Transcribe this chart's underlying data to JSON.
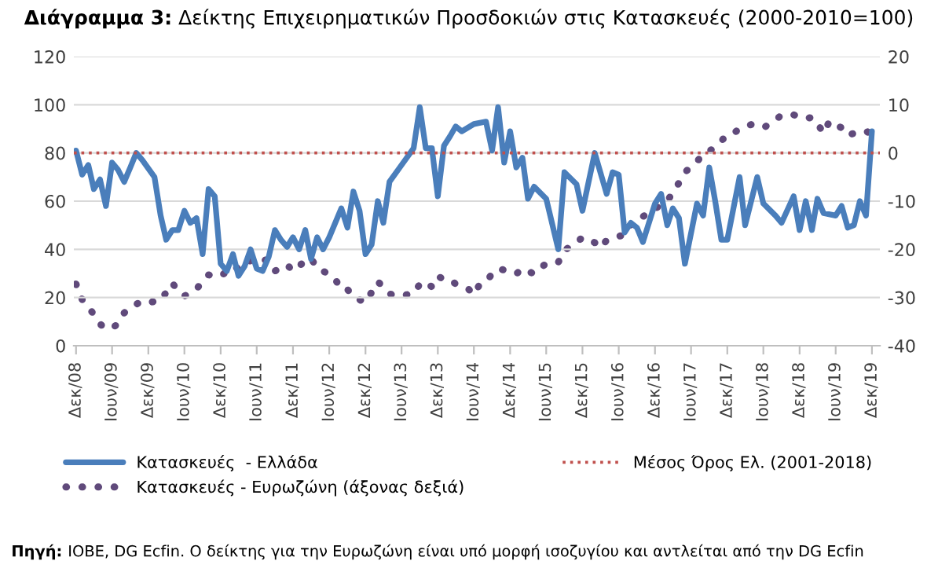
{
  "chart_data": {
    "type": "line",
    "title": "Διάγραμμα 3: Δείκτης Επιχειρηματικών Προσδοκιών στις Κατασκευές (2000-2010=100)",
    "series": [
      {
        "name": "Κατασκευές  - Ελλάδα",
        "color": "#4a7ebb",
        "line_style": "solid",
        "x": [
          "2008-12",
          "2009-01",
          "2009-02",
          "2009-03",
          "2009-04",
          "2009-05",
          "2009-06",
          "2009-07",
          "2009-08",
          "2009-09",
          "2009-10",
          "2009-11",
          "2010-01",
          "2010-02",
          "2010-03",
          "2010-04",
          "2010-05",
          "2010-06",
          "2010-07",
          "2010-08",
          "2010-09",
          "2010-10",
          "2010-11",
          "2010-12",
          "2011-01",
          "2011-02",
          "2011-03",
          "2011-04",
          "2011-05",
          "2011-06",
          "2011-07",
          "2011-08",
          "2011-09",
          "2011-10",
          "2011-11",
          "2011-12",
          "2012-01",
          "2012-02",
          "2012-03",
          "2012-04",
          "2012-05",
          "2012-06",
          "2012-08",
          "2012-09",
          "2012-10",
          "2012-11",
          "2012-12",
          "2013-01",
          "2013-02",
          "2013-03",
          "2013-04",
          "2013-06",
          "2013-08",
          "2013-09",
          "2013-10",
          "2013-11",
          "2013-12",
          "2014-01",
          "2014-02",
          "2014-03",
          "2014-04",
          "2014-06",
          "2014-08",
          "2014-09",
          "2014-10",
          "2014-11",
          "2014-12",
          "2015-01",
          "2015-02",
          "2015-03",
          "2015-04",
          "2015-06",
          "2015-08",
          "2015-09",
          "2015-11",
          "2015-12",
          "2016-02",
          "2016-04",
          "2016-05",
          "2016-06",
          "2016-07",
          "2016-08",
          "2016-09",
          "2016-10",
          "2016-12",
          "2017-01",
          "2017-02",
          "2017-03",
          "2017-04",
          "2017-05",
          "2017-07",
          "2017-08",
          "2017-09",
          "2017-10",
          "2017-11",
          "2017-12",
          "2018-02",
          "2018-03",
          "2018-05",
          "2018-06",
          "2018-08",
          "2018-09",
          "2018-11",
          "2018-12",
          "2019-01",
          "2019-02",
          "2019-03",
          "2019-04",
          "2019-06",
          "2019-07",
          "2019-08",
          "2019-09",
          "2019-10",
          "2019-11",
          "2019-12"
        ],
        "values": [
          81,
          71,
          75,
          65,
          69,
          58,
          76,
          73,
          68,
          74,
          80,
          77,
          70,
          54,
          44,
          48,
          48,
          56,
          51,
          53,
          38,
          65,
          62,
          34,
          31,
          38,
          29,
          33,
          40,
          32,
          31,
          37,
          48,
          44,
          41,
          45,
          40,
          48,
          36,
          45,
          40,
          45,
          57,
          49,
          64,
          56,
          38,
          42,
          60,
          51,
          68,
          75,
          82,
          99,
          82,
          82,
          62,
          83,
          87,
          91,
          89,
          92,
          93,
          81,
          99,
          76,
          89,
          74,
          78,
          61,
          66,
          61,
          40,
          72,
          67,
          56,
          80,
          63,
          72,
          71,
          47,
          51,
          49,
          43,
          59,
          63,
          50,
          57,
          53,
          34,
          59,
          54,
          74,
          60,
          44,
          44,
          70,
          50,
          70,
          59,
          54,
          51,
          62,
          48,
          60,
          48,
          61,
          55,
          54,
          58,
          49,
          50,
          60,
          54,
          89
        ]
      },
      {
        "name": "Κατασκευές - Ευρωζώνη (άξονας δεξιά)",
        "color": "#604a7b",
        "line_style": "dotted",
        "axis": "y2",
        "x": [
          "2008-12",
          "2009-01",
          "2009-02",
          "2009-03",
          "2009-04",
          "2009-05",
          "2009-06",
          "2009-07",
          "2009-08",
          "2009-09",
          "2009-11",
          "2009-12",
          "2010-02",
          "2010-03",
          "2010-04",
          "2010-05",
          "2010-06",
          "2010-08",
          "2010-09",
          "2010-10",
          "2010-11",
          "2010-12",
          "2011-02",
          "2011-03",
          "2011-04",
          "2011-06",
          "2011-08",
          "2011-09",
          "2011-11",
          "2011-12",
          "2012-02",
          "2012-03",
          "2012-04",
          "2012-06",
          "2012-07",
          "2012-08",
          "2012-09",
          "2012-10",
          "2012-12",
          "2013-01",
          "2013-02",
          "2013-03",
          "2013-04",
          "2013-05",
          "2013-07",
          "2013-08",
          "2013-09",
          "2013-10",
          "2013-11",
          "2013-12",
          "2014-01",
          "2014-02",
          "2014-03",
          "2014-05",
          "2014-06",
          "2014-07",
          "2014-08",
          "2014-09",
          "2014-10",
          "2014-12",
          "2015-01",
          "2015-02",
          "2015-04",
          "2015-05",
          "2015-06",
          "2015-08",
          "2015-09",
          "2015-11",
          "2015-12",
          "2016-02",
          "2016-03",
          "2016-04",
          "2016-06",
          "2016-07",
          "2016-08",
          "2016-10",
          "2016-12",
          "2017-02",
          "2017-03",
          "2017-04",
          "2017-05",
          "2017-07",
          "2017-08",
          "2017-09",
          "2017-11",
          "2017-12",
          "2018-01",
          "2018-02",
          "2018-04",
          "2018-06",
          "2018-08",
          "2018-09",
          "2018-11",
          "2018-12",
          "2019-01",
          "2019-02",
          "2019-03",
          "2019-04",
          "2019-05",
          "2019-07",
          "2019-08",
          "2019-09",
          "2019-11",
          "2019-12"
        ],
        "values": [
          -27.2,
          -30.4,
          -32,
          -33.5,
          -35.5,
          -36.4,
          -36.4,
          -35.4,
          -33.2,
          -32.1,
          -30.7,
          -31,
          -30.7,
          -28.9,
          -27,
          -28.6,
          -29.7,
          -28.3,
          -26.5,
          -25.3,
          -25.6,
          -25.6,
          -23.5,
          -24,
          -22.9,
          -21.8,
          -22.4,
          -24.5,
          -23.2,
          -24.5,
          -22.4,
          -21.8,
          -24,
          -25.1,
          -26.2,
          -28.3,
          -28.3,
          -29.9,
          -31,
          -28.9,
          -26.7,
          -27.8,
          -29.2,
          -29.7,
          -29.4,
          -29.2,
          -27.2,
          -26.7,
          -27.8,
          -25.6,
          -26.2,
          -26.2,
          -27.2,
          -28.1,
          -29.4,
          -27.2,
          -26.7,
          -25.1,
          -24,
          -24.6,
          -25.1,
          -24,
          -25.1,
          -24,
          -22.9,
          -22.7,
          -20.2,
          -18.6,
          -17.5,
          -18.6,
          -19.7,
          -18.1,
          -17.3,
          -17,
          -14.8,
          -13.2,
          -11.6,
          -9.9,
          -8.3,
          -6.2,
          -4,
          -1.8,
          -0.2,
          0.3,
          2.5,
          3.8,
          4.1,
          5,
          5.9,
          5.2,
          6.8,
          7.9,
          7.9,
          7.6,
          7.1,
          7.4,
          6.1,
          4.1,
          6.6,
          5.2,
          3.6,
          4.1,
          4.6,
          3.6
        ]
      }
    ],
    "ref_lines": [
      {
        "axis": "y",
        "value": 80,
        "label": "Μέσος Όρος Ελ. (2001-2018)",
        "color": "#c0504d",
        "line_style": "dotted"
      }
    ],
    "xlim": [
      "2008-11-20",
      "2020-01-10"
    ],
    "xticks": [
      {
        "value": "2008-12",
        "label": "Δεκ/08"
      },
      {
        "value": "2009-06",
        "label": "Ιουν/09"
      },
      {
        "value": "2009-12",
        "label": "Δεκ/09"
      },
      {
        "value": "2010-06",
        "label": "Ιουν/10"
      },
      {
        "value": "2010-12",
        "label": "Δεκ/10"
      },
      {
        "value": "2011-06",
        "label": "Ιουν/11"
      },
      {
        "value": "2011-12",
        "label": "Δεκ/11"
      },
      {
        "value": "2012-06",
        "label": "Ιουν/12"
      },
      {
        "value": "2012-12",
        "label": "Δεκ/12"
      },
      {
        "value": "2013-06",
        "label": "Ιουν/13"
      },
      {
        "value": "2013-12",
        "label": "Δεκ/13"
      },
      {
        "value": "2014-06",
        "label": "Ιουν/14"
      },
      {
        "value": "2014-12",
        "label": "Δεκ/14"
      },
      {
        "value": "2015-06",
        "label": "Ιουν/15"
      },
      {
        "value": "2015-12",
        "label": "Δεκ/15"
      },
      {
        "value": "2016-06",
        "label": "Ιουν/16"
      },
      {
        "value": "2016-12",
        "label": "Δεκ/16"
      },
      {
        "value": "2017-06",
        "label": "Ιουν/17"
      },
      {
        "value": "2017-12",
        "label": "Δεκ/17"
      },
      {
        "value": "2018-06",
        "label": "Ιουν/18"
      },
      {
        "value": "2018-12",
        "label": "Δεκ/18"
      },
      {
        "value": "2019-06",
        "label": "Ιουν/19"
      },
      {
        "value": "2019-12",
        "label": "Δεκ/19"
      }
    ],
    "ylim": [
      0,
      120
    ],
    "yticks": [
      0,
      20,
      40,
      60,
      80,
      100,
      120
    ],
    "y2lim": [
      -40,
      20
    ],
    "y2ticks": [
      -40,
      -30,
      -20,
      -10,
      0,
      10,
      20
    ],
    "grid": "y",
    "legend": "bottom",
    "marker": "none",
    "annotations": [
      "Πηγή: IOBE, DG Ecfin. Ο δείκτης για την Ευρωζώνη είναι υπό μορφή ισοζυγίου και αντλείται από την DG Ecfin"
    ]
  }
}
